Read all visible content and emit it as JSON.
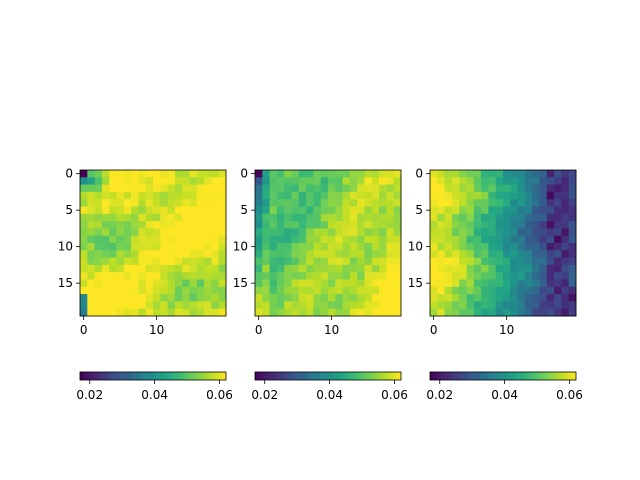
{
  "chart_data": [
    {
      "type": "heatmap",
      "colormap": "viridis",
      "rows": 20,
      "cols": 20,
      "x_ticks": [
        0,
        10
      ],
      "y_ticks": [
        0,
        5,
        10,
        15
      ],
      "clim": [
        0.017,
        0.062
      ],
      "colorbar": {
        "orientation": "horizontal",
        "ticks": [
          "0.02",
          "0.04",
          "0.06"
        ]
      },
      "values_description": "corner(0,0) low, rest high",
      "pattern": "low_corner"
    },
    {
      "type": "heatmap",
      "colormap": "viridis",
      "rows": 20,
      "cols": 20,
      "x_ticks": [
        0,
        10
      ],
      "y_ticks": [
        0,
        5,
        10,
        15
      ],
      "clim": [
        0.017,
        0.062
      ],
      "colorbar": {
        "orientation": "horizontal",
        "ticks": [
          "0.02",
          "0.04",
          "0.06"
        ]
      },
      "pattern": "low_left_column"
    },
    {
      "type": "heatmap",
      "colormap": "viridis",
      "rows": 20,
      "cols": 20,
      "x_ticks": [
        0,
        10
      ],
      "y_ticks": [
        0,
        5,
        10,
        15
      ],
      "clim": [
        0.017,
        0.062
      ],
      "colorbar": {
        "orientation": "horizontal",
        "ticks": [
          "0.02",
          "0.04",
          "0.06"
        ]
      },
      "pattern": "decreasing_right"
    }
  ]
}
